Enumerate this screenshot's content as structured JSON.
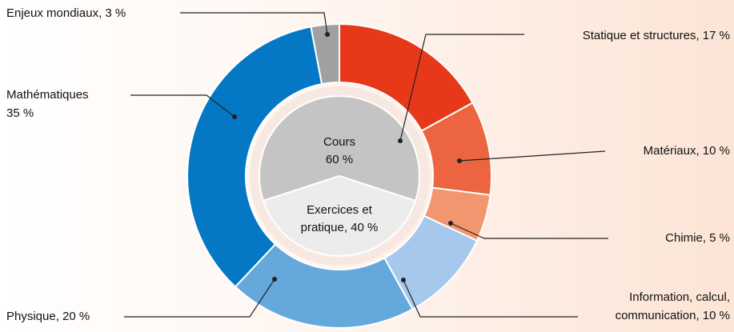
{
  "chart_data": {
    "type": "donut",
    "outer": {
      "labels": [
        [
          "Statique et structures, 17 %"
        ],
        [
          "Matériaux, 10 %"
        ],
        [
          "Chimie, 5 %"
        ],
        [
          "Information, calcul,",
          "communication, 10 %"
        ],
        [
          "Physique, 20 %"
        ],
        [
          "Mathématiques",
          "35 %"
        ],
        [
          "Enjeux mondiaux, 3 %"
        ]
      ],
      "values": [
        17,
        10,
        5,
        10,
        20,
        35,
        3
      ],
      "colors": [
        "#e8381a",
        "#ec6540",
        "#f29670",
        "#a6c8ec",
        "#64a8dc",
        "#0478c4",
        "#a0a0a0"
      ]
    },
    "inner": {
      "labels": [
        [
          "Cours",
          "60 %"
        ],
        [
          "Exercices et",
          "pratique, 40 %"
        ]
      ],
      "values": [
        60,
        40
      ],
      "colors": [
        "#c4c4c4",
        "#ececec"
      ]
    }
  }
}
